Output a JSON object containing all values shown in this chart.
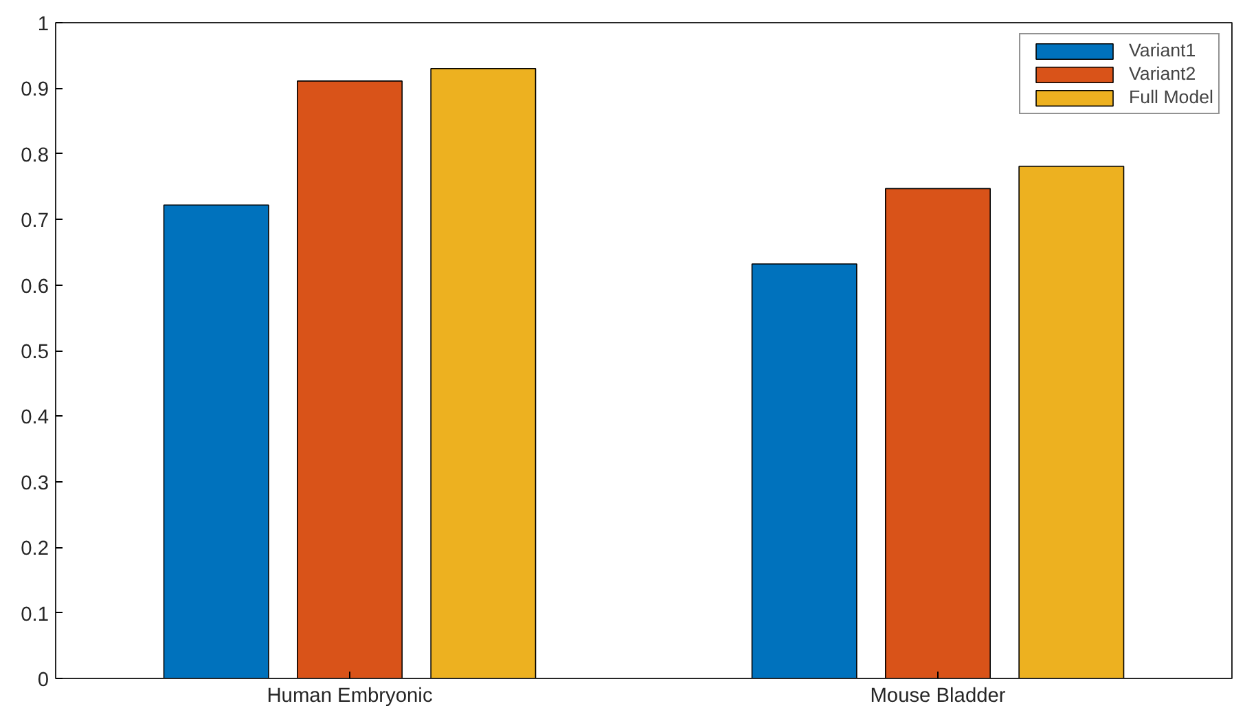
{
  "chart_data": {
    "type": "bar",
    "categories": [
      "Human Embryonic",
      "Mouse Bladder"
    ],
    "series": [
      {
        "name": "Variant1",
        "color": "#0072bd",
        "values": [
          0.722,
          0.632
        ]
      },
      {
        "name": "Variant2",
        "color": "#d95319",
        "values": [
          0.911,
          0.747
        ]
      },
      {
        "name": "Full Model",
        "color": "#edb120",
        "values": [
          0.93,
          0.781
        ]
      }
    ],
    "ylim": [
      0,
      1
    ],
    "yticks": [
      0,
      0.1,
      0.2,
      0.3,
      0.4,
      0.5,
      0.6,
      0.7,
      0.8,
      0.9,
      1
    ],
    "grid": false,
    "legend": "top right"
  }
}
